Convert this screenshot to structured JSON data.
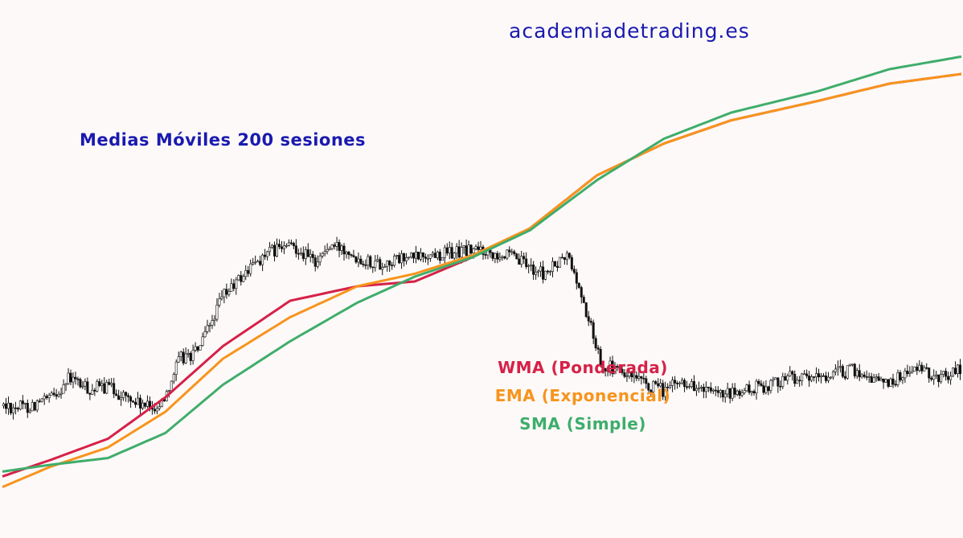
{
  "site": "academiadetrading.es",
  "chart_data": {
    "type": "candlestick",
    "title": "Medias Móviles 200 sesiones",
    "xlabel": "",
    "ylabel": "",
    "grid": false,
    "legend_position": "center-right",
    "price_path": [
      [
        0,
        96
      ],
      [
        5,
        95
      ],
      [
        10,
        103
      ],
      [
        14,
        125
      ],
      [
        18,
        113
      ],
      [
        22,
        116
      ],
      [
        26,
        104
      ],
      [
        30,
        94
      ],
      [
        33,
        97
      ],
      [
        37,
        145
      ],
      [
        40,
        150
      ],
      [
        42,
        165
      ],
      [
        46,
        210
      ],
      [
        49,
        225
      ],
      [
        53,
        246
      ],
      [
        57,
        258
      ],
      [
        61,
        262
      ],
      [
        65,
        245
      ],
      [
        68,
        260
      ],
      [
        72,
        260
      ],
      [
        74,
        250
      ],
      [
        79,
        243
      ],
      [
        82,
        247
      ],
      [
        86,
        250
      ],
      [
        90,
        253
      ],
      [
        94,
        255
      ],
      [
        97,
        257
      ],
      [
        100,
        258
      ],
      [
        104,
        254
      ],
      [
        109,
        243
      ],
      [
        113,
        232
      ],
      [
        118,
        252
      ],
      [
        121,
        205
      ],
      [
        125,
        140
      ],
      [
        130,
        128
      ],
      [
        134,
        117
      ],
      [
        138,
        112
      ],
      [
        142,
        122
      ],
      [
        149,
        105
      ],
      [
        154,
        110
      ],
      [
        161,
        120
      ],
      [
        164,
        128
      ],
      [
        168,
        122
      ],
      [
        172,
        128
      ],
      [
        177,
        133
      ],
      [
        180,
        128
      ],
      [
        185,
        120
      ],
      [
        190,
        135
      ],
      [
        195,
        125
      ],
      [
        200,
        136
      ]
    ],
    "series": [
      {
        "name": "WMA (Ponderada)",
        "color": "#d62148",
        "points": [
          [
            0,
            23
          ],
          [
            10,
            40
          ],
          [
            22,
            62
          ],
          [
            34,
            105
          ],
          [
            46,
            158
          ],
          [
            60,
            205
          ],
          [
            74,
            220
          ],
          [
            86,
            225
          ],
          [
            98,
            250
          ],
          [
            110,
            280
          ],
          [
            124,
            335
          ],
          [
            138,
            368
          ],
          [
            152,
            392
          ],
          [
            170,
            412
          ],
          [
            185,
            430
          ],
          [
            200,
            440
          ]
        ]
      },
      {
        "name": "EMA (Exponencial)",
        "color": "#f7941d",
        "points": [
          [
            0,
            12
          ],
          [
            10,
            33
          ],
          [
            22,
            53
          ],
          [
            34,
            90
          ],
          [
            46,
            145
          ],
          [
            60,
            188
          ],
          [
            74,
            220
          ],
          [
            86,
            233
          ],
          [
            98,
            252
          ],
          [
            110,
            280
          ],
          [
            124,
            335
          ],
          [
            138,
            368
          ],
          [
            152,
            392
          ],
          [
            170,
            412
          ],
          [
            185,
            430
          ],
          [
            200,
            440
          ]
        ]
      },
      {
        "name": "SMA (Simple)",
        "color": "#3fad6b",
        "points": [
          [
            0,
            28
          ],
          [
            10,
            35
          ],
          [
            22,
            42
          ],
          [
            34,
            68
          ],
          [
            46,
            118
          ],
          [
            60,
            163
          ],
          [
            74,
            203
          ],
          [
            86,
            230
          ],
          [
            98,
            250
          ],
          [
            110,
            278
          ],
          [
            124,
            330
          ],
          [
            138,
            373
          ],
          [
            152,
            400
          ],
          [
            170,
            422
          ],
          [
            185,
            445
          ],
          [
            200,
            458
          ]
        ]
      }
    ],
    "legend": [
      {
        "label": "WMA (Ponderada)",
        "color": "#d62148"
      },
      {
        "label": "EMA (Exponencial)",
        "color": "#f7941d"
      },
      {
        "label": "SMA (Simple)",
        "color": "#3fad6b"
      }
    ],
    "xlim": [
      0,
      200
    ],
    "ylim": [
      0,
      500
    ]
  }
}
